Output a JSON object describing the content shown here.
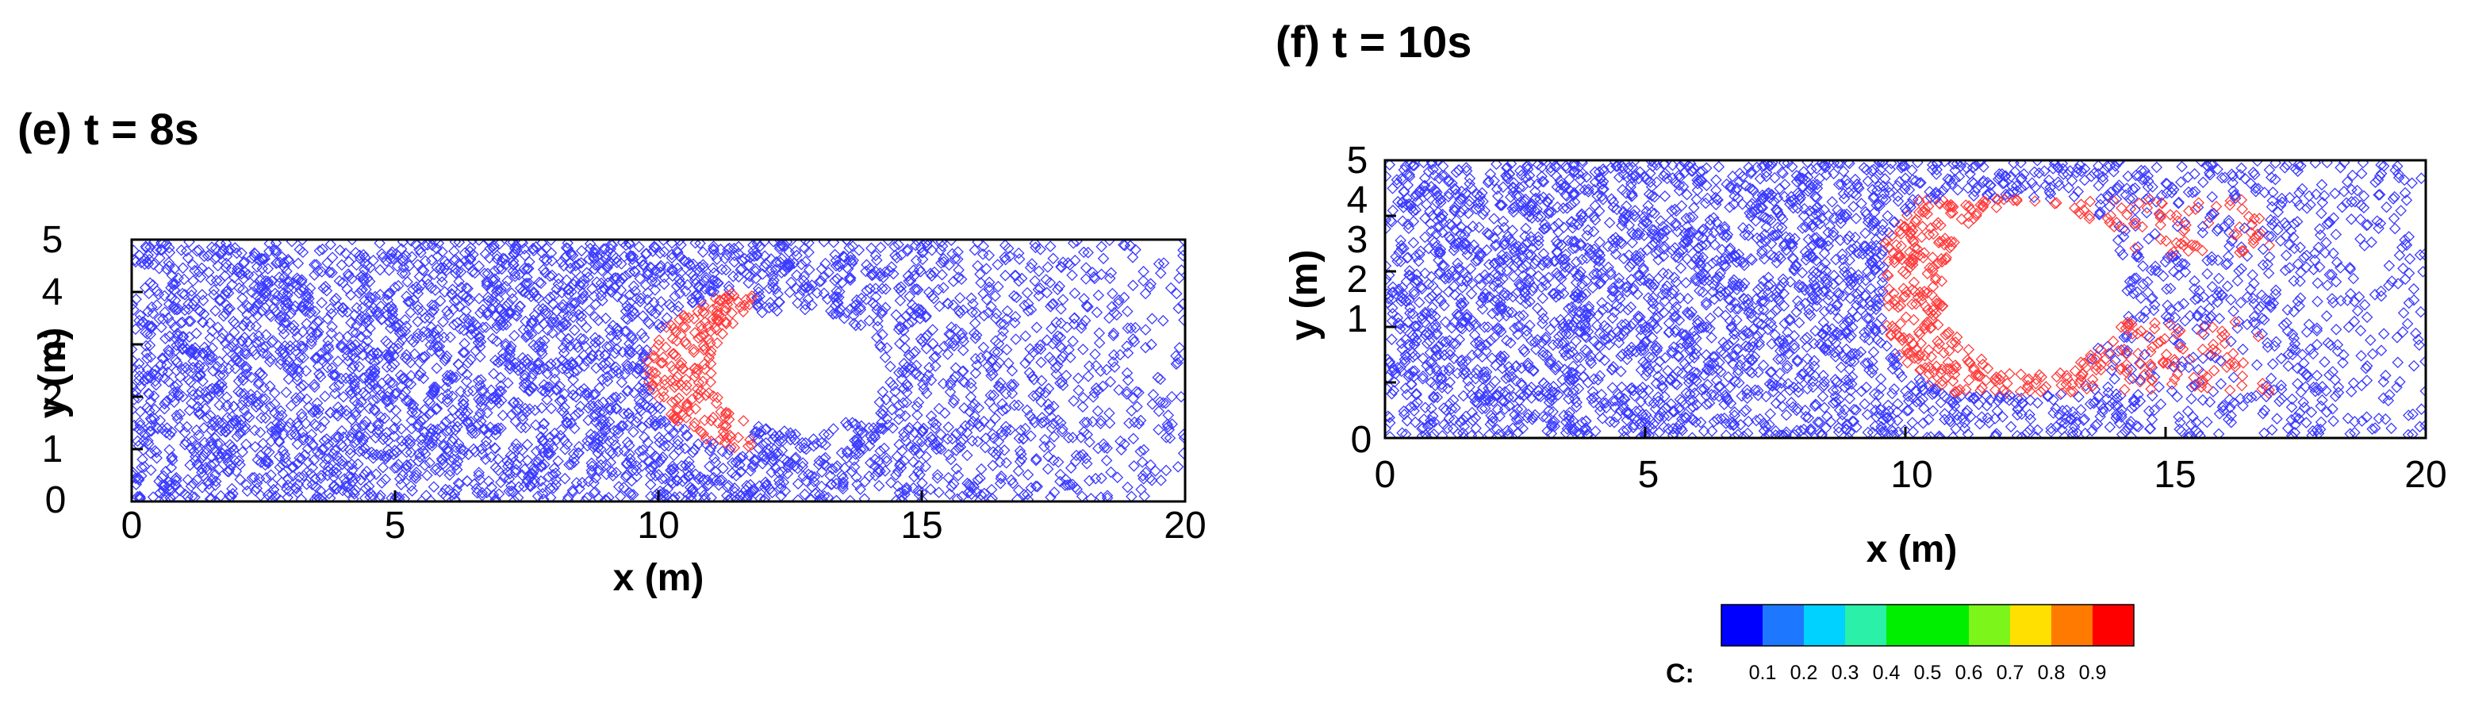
{
  "chart_data": [
    {
      "type": "scatter",
      "title": "(e) t = 8s",
      "xlabel": "x (m)",
      "ylabel": "y (m)",
      "xlim": [
        0,
        20
      ],
      "ylim": [
        0,
        5
      ],
      "xticks": [
        "0",
        "5",
        "10",
        "15",
        "20"
      ],
      "yticks": [
        "0",
        "1",
        "2",
        "3",
        "4",
        "5"
      ],
      "grid": false,
      "cavity": {
        "x_range": [
          11,
          14.3
        ],
        "y_center": 2.5,
        "half_height": 1.15
      },
      "high_concentration_band": {
        "x_range": [
          8.8,
          11.8
        ],
        "y_range": [
          1.0,
          4.0
        ],
        "value": 0.9
      },
      "background_value": 0.1
    },
    {
      "type": "scatter",
      "title": "(f) t = 10s",
      "xlabel": "x (m)",
      "ylabel": "y (m)",
      "xlim": [
        0,
        20
      ],
      "ylim": [
        0,
        5
      ],
      "xticks": [
        "0",
        "5",
        "10",
        "15",
        "20"
      ],
      "yticks": [
        "0",
        "1",
        "2",
        "3",
        "4",
        "5"
      ],
      "grid": false,
      "cavity": {
        "x_range": [
          10.7,
          14.2
        ],
        "y_center": 2.7,
        "half_height": 1.55
      },
      "high_concentration_band": {
        "x_range": [
          9.6,
          17.0
        ],
        "y_range": [
          0.8,
          4.3
        ],
        "value": 0.9
      },
      "background_value": 0.1
    }
  ],
  "colorbar": {
    "label": "C:",
    "ticks": [
      "0.1",
      "0.2",
      "0.3",
      "0.4",
      "0.5",
      "0.6",
      "0.7",
      "0.8",
      "0.9"
    ],
    "colors": [
      "#0000ff",
      "#1e78ff",
      "#00d2ff",
      "#2af0a8",
      "#00ee00",
      "#00ee00",
      "#7cf51a",
      "#ffe000",
      "#ff7a00",
      "#ff0000"
    ]
  },
  "colors": {
    "low": "#3b3bff",
    "high": "#ff3b3b"
  }
}
